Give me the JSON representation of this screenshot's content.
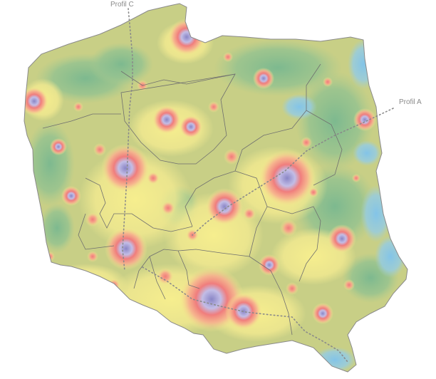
{
  "map": {
    "labels": {
      "profile_c": "Profil C",
      "profile_a": "Profil A"
    },
    "colors": {
      "land_base": "#c9cf86",
      "dark_green": "#7fba8f",
      "green": "#a7c98f",
      "yellow": "#f3ec8f",
      "salmon": "#f39b85",
      "red": "#f17b7b",
      "lavender": "#bdb8e2",
      "blue": "#8ec9e6",
      "border": "#6f6f6f",
      "profile_line": "#8a8a8a"
    }
  }
}
